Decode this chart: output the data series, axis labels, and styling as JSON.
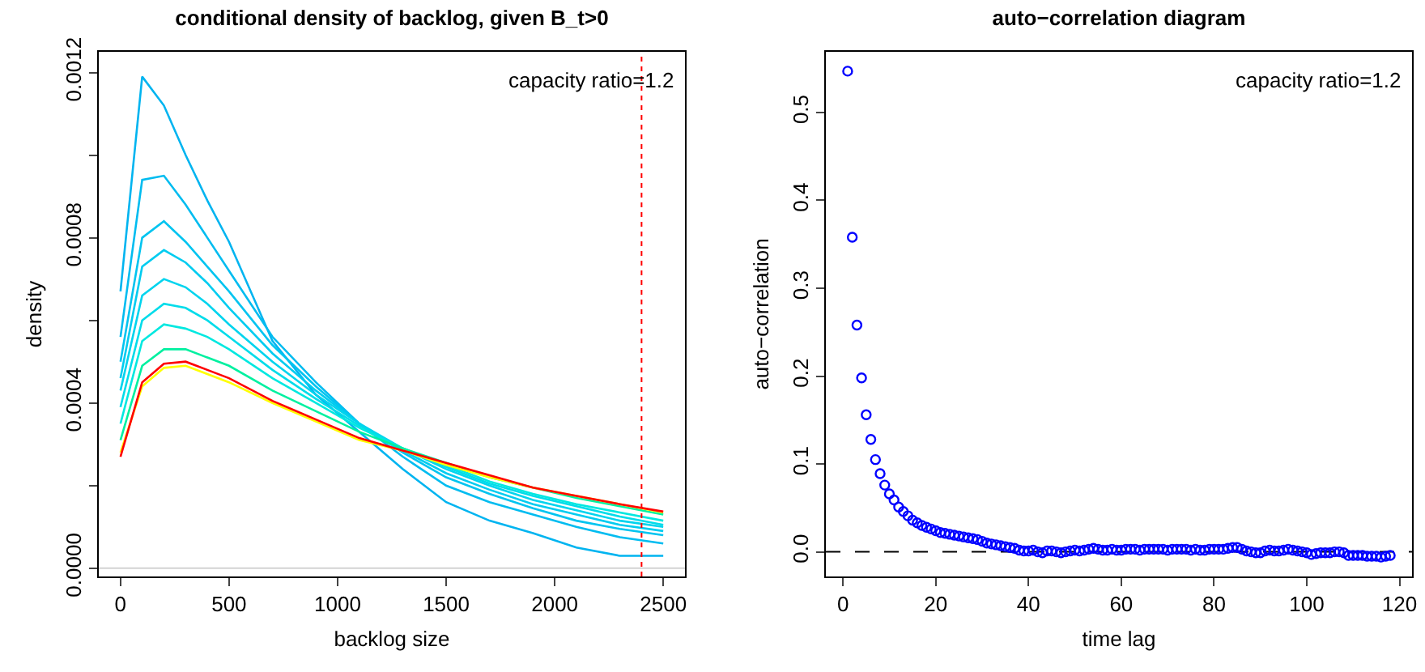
{
  "chart_data": [
    {
      "type": "line",
      "title": "conditional density of backlog, given B_t>0",
      "xlabel": "backlog size",
      "ylabel": "density",
      "annotations": [
        "capacity ratio=1.2"
      ],
      "x": [
        0,
        100,
        200,
        300,
        400,
        500,
        700,
        900,
        1100,
        1300,
        1500,
        1700,
        1900,
        2100,
        2300,
        2500
      ],
      "series": [
        {
          "color": "#00b4f0",
          "values": [
            0.00067,
            0.00119,
            0.00112,
            0.001,
            0.00089,
            0.00079,
            0.00055,
            0.00042,
            0.00033,
            0.00024,
            0.00016,
            0.000115,
            8.5e-05,
            5e-05,
            3e-05,
            3e-05
          ]
        },
        {
          "color": "#00bcf0",
          "values": [
            0.00056,
            0.00094,
            0.00095,
            0.00088,
            0.0008,
            0.00072,
            0.00056,
            0.00045,
            0.00035,
            0.00027,
            0.0002,
            0.00016,
            0.00013,
            0.0001,
            7.5e-05,
            6e-05
          ]
        },
        {
          "color": "#00c4f0",
          "values": [
            0.0005,
            0.0008,
            0.00084,
            0.00079,
            0.00073,
            0.00067,
            0.00054,
            0.00044,
            0.00035,
            0.00028,
            0.00022,
            0.00018,
            0.000145,
            0.000115,
            9.5e-05,
            8e-05
          ]
        },
        {
          "color": "#00ccf0",
          "values": [
            0.00046,
            0.00073,
            0.00077,
            0.00074,
            0.00069,
            0.00063,
            0.00052,
            0.00043,
            0.00035,
            0.000285,
            0.00023,
            0.00019,
            0.000155,
            0.00013,
            0.000105,
            9e-05
          ]
        },
        {
          "color": "#00d4ee",
          "values": [
            0.00043,
            0.00066,
            0.0007,
            0.00068,
            0.00064,
            0.00059,
            0.0005,
            0.00042,
            0.00035,
            0.00029,
            0.00024,
            0.0002,
            0.000165,
            0.00014,
            0.000115,
            0.0001
          ]
        },
        {
          "color": "#00dcea",
          "values": [
            0.00039,
            0.0006,
            0.00064,
            0.00063,
            0.0006,
            0.00056,
            0.00048,
            0.00041,
            0.000345,
            0.00029,
            0.000245,
            0.000205,
            0.000175,
            0.00015,
            0.000125,
            0.000105
          ]
        },
        {
          "color": "#00e8e0",
          "values": [
            0.00035,
            0.00055,
            0.00059,
            0.00058,
            0.00056,
            0.00053,
            0.00046,
            0.0004,
            0.00034,
            0.00029,
            0.00025,
            0.00021,
            0.00018,
            0.000155,
            0.000135,
            0.000115
          ]
        },
        {
          "color": "#00f0a0",
          "values": [
            0.00031,
            0.00049,
            0.00053,
            0.00053,
            0.00051,
            0.00049,
            0.00043,
            0.00038,
            0.00033,
            0.00029,
            0.000255,
            0.00022,
            0.000195,
            0.00017,
            0.00015,
            0.00013
          ]
        },
        {
          "color": "#ffff00",
          "values": [
            0.00028,
            0.00044,
            0.000485,
            0.00049,
            0.00047,
            0.00045,
            0.0004,
            0.000355,
            0.00031,
            0.000285,
            0.00025,
            0.00022,
            0.000195,
            0.000175,
            0.000155,
            0.000135
          ]
        },
        {
          "color": "#ff0000",
          "values": [
            0.00027,
            0.00045,
            0.000495,
            0.0005,
            0.00048,
            0.00046,
            0.000405,
            0.00036,
            0.000315,
            0.000285,
            0.000255,
            0.000225,
            0.000195,
            0.000175,
            0.000155,
            0.000137
          ]
        }
      ],
      "xlim": [
        -100,
        2600
      ],
      "ylim": [
        -2e-05,
        0.00125
      ],
      "xticks": [
        0,
        500,
        1000,
        1500,
        2000,
        2500
      ],
      "yticks": [
        {
          "value": 0,
          "label": "0.0000"
        },
        {
          "value": 0.0002,
          "label": null
        },
        {
          "value": 0.0004,
          "label": "0.0004"
        },
        {
          "value": 0.0006,
          "label": null
        },
        {
          "value": 0.0008,
          "label": "0.0008"
        },
        {
          "value": 0.001,
          "label": null
        },
        {
          "value": 0.0012,
          "label": "0.0012"
        }
      ],
      "ref_lines": [
        {
          "axis": "x",
          "value": 2400,
          "color": "#ff0000",
          "line_style": "dotted"
        },
        {
          "axis": "y",
          "value": 0,
          "color": "#d3d3d3",
          "line_style": "solid"
        }
      ]
    },
    {
      "type": "scatter",
      "title": "auto−correlation diagram",
      "xlabel": "time lag",
      "ylabel": "auto−correlation",
      "annotations": [
        "capacity ratio=1.2"
      ],
      "marker": "circle",
      "x": [
        1,
        2,
        3,
        4,
        5,
        6,
        7,
        8,
        9,
        10,
        11,
        12,
        13,
        14,
        15,
        16,
        17,
        18,
        19,
        20,
        21,
        22,
        23,
        24,
        25,
        26,
        27,
        28,
        29,
        30,
        31,
        32,
        33,
        34,
        35,
        36,
        37,
        38,
        39,
        40,
        41,
        42,
        43,
        44,
        45,
        46,
        47,
        48,
        49,
        50,
        51,
        52,
        53,
        54,
        55,
        56,
        57,
        58,
        59,
        60,
        61,
        62,
        63,
        64,
        65,
        66,
        67,
        68,
        69,
        70,
        71,
        72,
        73,
        74,
        75,
        76,
        77,
        78,
        79,
        80,
        81,
        82,
        83,
        84,
        85,
        86,
        87,
        88,
        89,
        90,
        91,
        92,
        93,
        94,
        95,
        96,
        97,
        98,
        99,
        100,
        101,
        102,
        103,
        104,
        105,
        106,
        107,
        108,
        109,
        110,
        111,
        112,
        113,
        114,
        115,
        116,
        117,
        118
      ],
      "series": [
        {
          "color": "#0000ff",
          "values": [
            0.547,
            0.358,
            0.258,
            0.198,
            0.156,
            0.128,
            0.105,
            0.089,
            0.076,
            0.066,
            0.059,
            0.051,
            0.046,
            0.041,
            0.036,
            0.033,
            0.03,
            0.028,
            0.026,
            0.024,
            0.022,
            0.021,
            0.02,
            0.019,
            0.018,
            0.017,
            0.016,
            0.015,
            0.014,
            0.012,
            0.01,
            0.009,
            0.008,
            0.007,
            0.006,
            0.005,
            0.004,
            0.002,
            0.001,
            0.001,
            0.002,
            0,
            -0.001,
            0.001,
            0.001,
            0,
            -0.001,
            0,
            0.001,
            0.002,
            0.001,
            0.002,
            0.003,
            0.004,
            0.003,
            0.002,
            0.002,
            0.003,
            0.002,
            0.002,
            0.003,
            0.003,
            0.003,
            0.002,
            0.003,
            0.003,
            0.003,
            0.003,
            0.003,
            0.002,
            0.003,
            0.003,
            0.003,
            0.003,
            0.002,
            0.003,
            0.002,
            0.002,
            0.003,
            0.003,
            0.003,
            0.003,
            0.004,
            0.005,
            0.005,
            0.003,
            0.001,
            0,
            -0.001,
            -0.001,
            0.001,
            0.002,
            0.001,
            0.001,
            0.002,
            0.003,
            0.002,
            0.001,
            0,
            -0.001,
            -0.003,
            -0.002,
            -0.001,
            -0.001,
            -0.001,
            0,
            0,
            -0.001,
            -0.004,
            -0.004,
            -0.004,
            -0.004,
            -0.005,
            -0.005,
            -0.005,
            -0.006,
            -0.005,
            -0.004
          ]
        }
      ],
      "xlim": [
        -3.7,
        122.7
      ],
      "ylim": [
        -0.028,
        0.569
      ],
      "xticks": [
        0,
        20,
        40,
        60,
        80,
        100,
        120
      ],
      "yticks": [
        {
          "value": 0,
          "label": "0.0"
        },
        {
          "value": 0.1,
          "label": "0.1"
        },
        {
          "value": 0.2,
          "label": "0.2"
        },
        {
          "value": 0.3,
          "label": "0.3"
        },
        {
          "value": 0.4,
          "label": "0.4"
        },
        {
          "value": 0.5,
          "label": "0.5"
        }
      ],
      "ref_lines": [
        {
          "axis": "y",
          "value": 0,
          "color": "#000000",
          "line_style": "dashed"
        }
      ]
    }
  ]
}
